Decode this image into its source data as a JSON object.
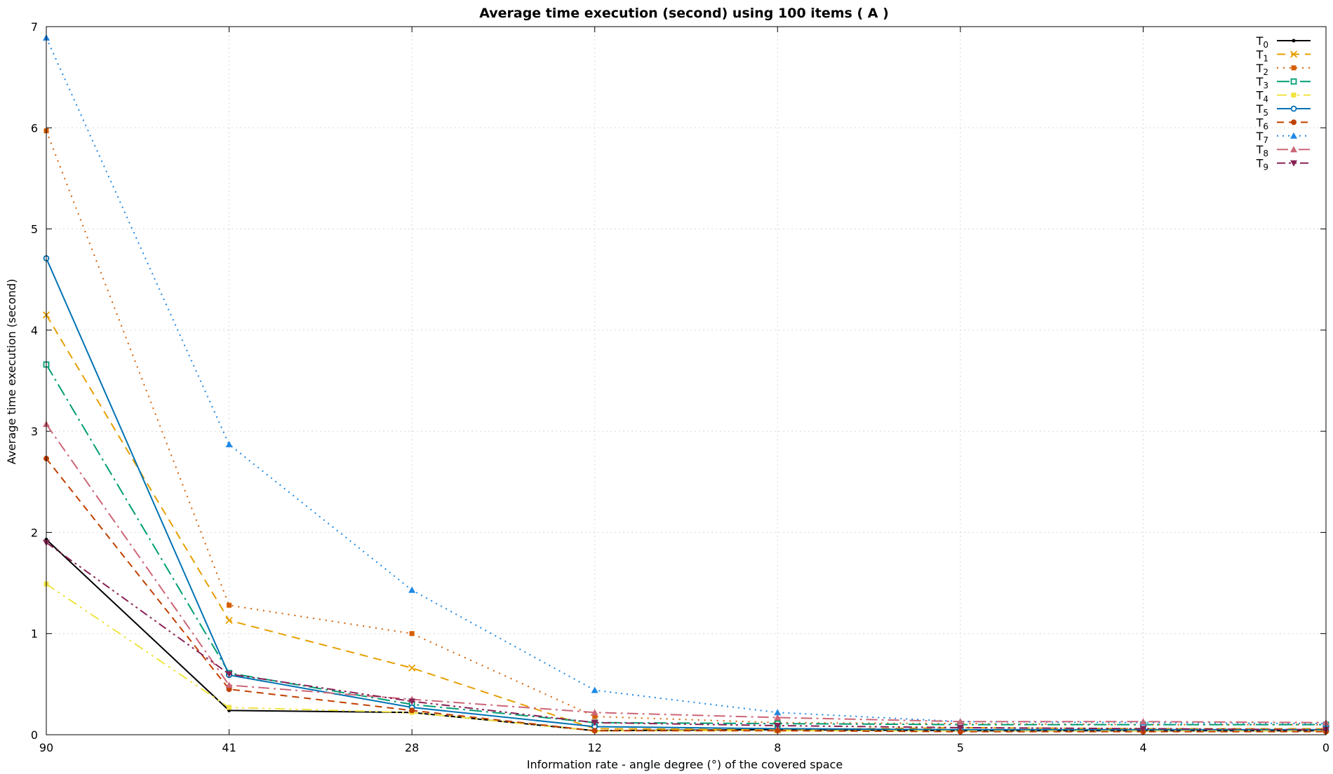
{
  "chart_data": {
    "type": "line",
    "title": "Average time execution (second) using 100 items ( A )",
    "xlabel": "Information rate - angle degree (°)  of the covered space",
    "ylabel": "Average time execution (second)",
    "categories": [
      "90",
      "41",
      "28",
      "12",
      "8",
      "5",
      "4",
      "0"
    ],
    "ylim": [
      0,
      7
    ],
    "yticks": [
      0,
      1,
      2,
      3,
      4,
      5,
      6,
      7
    ],
    "grid": true,
    "legend_position": "top-right",
    "series": [
      {
        "name": "T",
        "sub": "0",
        "color": "#000000",
        "dash": "",
        "marker": "dot",
        "values": [
          1.93,
          0.24,
          0.22,
          0.04,
          0.05,
          0.04,
          0.04,
          0.04
        ]
      },
      {
        "name": "T",
        "sub": "1",
        "color": "#E69F00",
        "dash": "12 8",
        "marker": "x",
        "values": [
          4.15,
          1.13,
          0.66,
          0.06,
          0.05,
          0.07,
          0.06,
          0.06
        ]
      },
      {
        "name": "T",
        "sub": "2",
        "color": "#D55E00",
        "dash": "2 7",
        "marker": "square",
        "values": [
          5.97,
          1.28,
          1.0,
          0.18,
          0.12,
          0.11,
          0.1,
          0.1
        ]
      },
      {
        "name": "T",
        "sub": "3",
        "color": "#009E73",
        "dash": "18 6 3 6",
        "marker": "square-open",
        "values": [
          3.66,
          0.61,
          0.3,
          0.12,
          0.11,
          0.1,
          0.1,
          0.1
        ]
      },
      {
        "name": "T",
        "sub": "4",
        "color": "#F0E442",
        "dash": "14 6 3 6 3 6",
        "marker": "square",
        "values": [
          1.49,
          0.27,
          0.22,
          0.04,
          0.04,
          0.04,
          0.04,
          0.04
        ]
      },
      {
        "name": "T",
        "sub": "5",
        "color": "#0072B2",
        "dash": "",
        "marker": "circle-open",
        "values": [
          4.71,
          0.59,
          0.27,
          0.08,
          0.06,
          0.05,
          0.05,
          0.05
        ]
      },
      {
        "name": "T",
        "sub": "6",
        "color": "#C04000",
        "dash": "10 7",
        "marker": "circle",
        "values": [
          2.73,
          0.45,
          0.24,
          0.04,
          0.04,
          0.03,
          0.03,
          0.03
        ]
      },
      {
        "name": "T",
        "sub": "7",
        "color": "#1E88E5",
        "dash": "2 6",
        "marker": "triangle",
        "values": [
          6.89,
          2.87,
          1.43,
          0.44,
          0.22,
          0.13,
          0.12,
          0.11
        ]
      },
      {
        "name": "T",
        "sub": "8",
        "color": "#CC6677",
        "dash": "16 6 3 6",
        "marker": "triangle",
        "values": [
          3.07,
          0.49,
          0.35,
          0.22,
          0.17,
          0.13,
          0.13,
          0.12
        ]
      },
      {
        "name": "T",
        "sub": "9",
        "color": "#882255",
        "dash": "12 5 3 5 3 5",
        "marker": "triangle-down",
        "values": [
          1.9,
          0.6,
          0.33,
          0.12,
          0.09,
          0.07,
          0.06,
          0.05
        ]
      }
    ]
  }
}
